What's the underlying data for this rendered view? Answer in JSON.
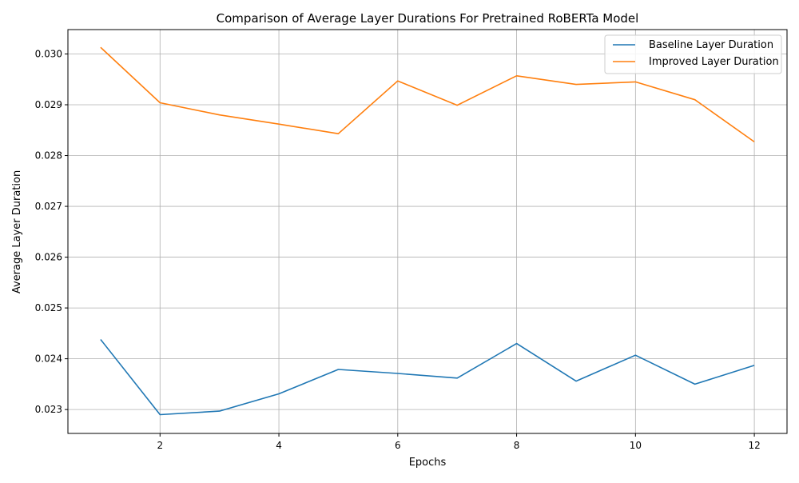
{
  "chart_data": {
    "type": "line",
    "title": "Comparison of Average Layer Durations For Pretrained RoBERTa Model",
    "xlabel": "Epochs",
    "ylabel": "Average Layer Duration",
    "x": [
      1,
      2,
      3,
      4,
      5,
      6,
      7,
      8,
      9,
      10,
      11,
      12
    ],
    "xlim": [
      0.45,
      12.55
    ],
    "ylim": [
      0.02253,
      0.03048
    ],
    "xticks": [
      "2",
      "4",
      "6",
      "8",
      "10",
      "12"
    ],
    "yticks": [
      "0.023",
      "0.024",
      "0.025",
      "0.026",
      "0.027",
      "0.028",
      "0.029",
      "0.030"
    ],
    "grid": true,
    "legend_position": "top-right",
    "series": [
      {
        "name": "Baseline Layer Duration",
        "color": "#1f77b4",
        "values": [
          0.02438,
          0.0229,
          0.02297,
          0.02331,
          0.02379,
          0.02371,
          0.02362,
          0.0243,
          0.02356,
          0.02407,
          0.0235,
          0.02387
        ]
      },
      {
        "name": "Improved Layer Duration",
        "color": "#ff7f0e",
        "values": [
          0.03013,
          0.02904,
          0.0288,
          0.02862,
          0.02843,
          0.02947,
          0.02899,
          0.02957,
          0.0294,
          0.02945,
          0.0291,
          0.02827
        ]
      }
    ]
  }
}
